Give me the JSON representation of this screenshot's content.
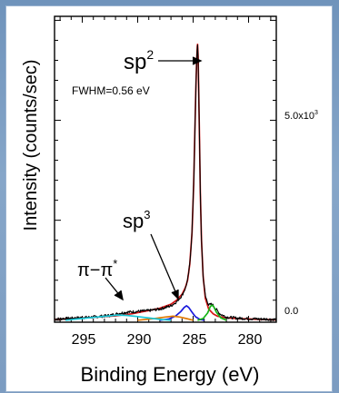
{
  "chart_data": {
    "type": "line",
    "xlabel": "Binding Energy (eV)",
    "ylabel": "Intensity (counts/sec)",
    "xlim": [
      297.5,
      277.5
    ],
    "ylim": [
      -0.05,
      7.6
    ],
    "x_ticks": [
      295,
      290,
      285,
      280
    ],
    "x_tick_labels": [
      "295",
      "290",
      "285",
      "280"
    ],
    "right_axis_ticks": [
      {
        "label": "5.0x10",
        "sup": "3",
        "value": 5.0
      },
      {
        "label": "0.0",
        "sup": "",
        "value": 0.0
      }
    ],
    "annotations": [
      {
        "text": "sp",
        "sup": "2",
        "target": [
          284.6,
          6.6
        ]
      },
      {
        "text": "FWHM=0.56 eV"
      },
      {
        "text": "sp",
        "sup": "3",
        "target": [
          285.6,
          0.6
        ]
      },
      {
        "text": "π−π",
        "sup": "*",
        "target": [
          291.3,
          0.18
        ]
      }
    ],
    "series": [
      {
        "color": "#d61414",
        "x": [
          297.5,
          296,
          294,
          292,
          290.5,
          289,
          288,
          287,
          286.5,
          286,
          285.7,
          285.5,
          285.3,
          285.1,
          284.95,
          284.85,
          284.75,
          284.68,
          284.62,
          284.6,
          284.55,
          284.5,
          284.42,
          284.35,
          284.25,
          284.1,
          283.9,
          283.6,
          283.2,
          282.8,
          282,
          281,
          279,
          277.5
        ],
        "y": [
          0.02,
          0.04,
          0.07,
          0.11,
          0.16,
          0.24,
          0.3,
          0.4,
          0.5,
          0.65,
          0.82,
          1.0,
          1.4,
          2.2,
          3.4,
          4.6,
          5.8,
          6.5,
          6.85,
          6.9,
          6.6,
          5.8,
          4.4,
          3.2,
          2.0,
          1.1,
          0.55,
          0.28,
          0.16,
          0.1,
          0.06,
          0.04,
          0.02,
          0.01
        ]
      },
      {
        "color": "#000000",
        "noisy": true,
        "x": [
          297.5,
          296,
          294,
          292.5,
          291.5,
          291,
          290,
          289,
          288,
          287,
          286.5,
          286,
          285.7,
          285.5,
          285.3,
          285.1,
          284.95,
          284.85,
          284.75,
          284.68,
          284.62,
          284.6,
          284.55,
          284.5,
          284.42,
          284.35,
          284.25,
          284.1,
          283.9,
          283.6,
          283.3,
          283,
          282.6,
          282,
          281,
          279,
          277.5
        ],
        "y": [
          0.03,
          0.05,
          0.08,
          0.12,
          0.18,
          0.2,
          0.22,
          0.24,
          0.28,
          0.36,
          0.46,
          0.62,
          0.8,
          1.0,
          1.4,
          2.2,
          3.4,
          4.6,
          5.8,
          6.5,
          6.85,
          6.9,
          6.6,
          5.8,
          4.4,
          3.2,
          2.0,
          1.1,
          0.6,
          0.38,
          0.4,
          0.3,
          0.16,
          0.08,
          0.05,
          0.03,
          0.02
        ]
      },
      {
        "color": "#1a1adc",
        "x": [
          288,
          287.2,
          286.6,
          286.1,
          285.8,
          285.6,
          285.4,
          285.1,
          284.8,
          284.4,
          284
        ],
        "y": [
          0.0,
          0.03,
          0.1,
          0.22,
          0.32,
          0.36,
          0.32,
          0.2,
          0.09,
          0.02,
          0.0
        ]
      },
      {
        "color": "#14b414",
        "x": [
          284.6,
          284.1,
          283.7,
          283.45,
          283.3,
          283.15,
          282.9,
          282.5,
          282
        ],
        "y": [
          0.0,
          0.04,
          0.18,
          0.34,
          0.38,
          0.34,
          0.2,
          0.06,
          0.0
        ]
      },
      {
        "color": "#e07800",
        "x": [
          290,
          288.5,
          287.5,
          286.8,
          286.2,
          285.6,
          285
        ],
        "y": [
          0.0,
          0.04,
          0.08,
          0.1,
          0.08,
          0.04,
          0.0
        ]
      },
      {
        "color": "#18c8d8",
        "x": [
          296.5,
          295.5,
          294,
          292.5,
          291.8,
          291,
          290,
          288.8,
          288,
          287
        ],
        "y": [
          0.0,
          0.03,
          0.07,
          0.11,
          0.13,
          0.12,
          0.09,
          0.05,
          0.02,
          0.0
        ]
      }
    ]
  }
}
